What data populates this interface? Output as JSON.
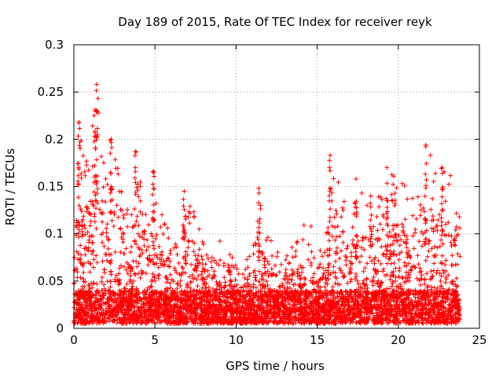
{
  "chart_data": {
    "type": "scatter",
    "title": "Day 189 of 2015, Rate Of TEC Index for receiver reyk",
    "xlabel": "GPS time / hours",
    "ylabel": "ROTI / TECUs",
    "xlim": [
      0,
      25
    ],
    "ylim": [
      0,
      0.3
    ],
    "xticks": [
      0,
      5,
      10,
      15,
      20,
      25
    ],
    "yticks": [
      0,
      0.05,
      0.1,
      0.15,
      0.2,
      0.25,
      0.3
    ],
    "xtick_labels": [
      "0",
      "5",
      "10",
      "15",
      "20",
      "25"
    ],
    "ytick_labels": [
      "0",
      "0.05",
      "0.1",
      "0.15",
      "0.2",
      "0.25",
      "0.3"
    ],
    "grid": true,
    "marker": "+",
    "series_color": "#ff0000",
    "envelope": {
      "description": "approximate upper envelope of ROTI values (hours, TECU/min)",
      "x": [
        0,
        0.3,
        0.6,
        1.0,
        1.5,
        2.0,
        2.5,
        3.0,
        3.5,
        4.0,
        4.5,
        5.0,
        5.5,
        6.0,
        6.5,
        7.0,
        7.5,
        8.0,
        8.5,
        9.0,
        9.5,
        10.0,
        10.5,
        11.0,
        11.5,
        12.0,
        12.5,
        13.0,
        13.5,
        14.0,
        14.5,
        15.0,
        15.5,
        16.0,
        16.5,
        17.0,
        17.5,
        18.0,
        18.5,
        19.0,
        19.5,
        20.0,
        20.5,
        21.0,
        21.5,
        22.0,
        22.5,
        23.0,
        23.5,
        23.8
      ],
      "y": [
        0.15,
        0.21,
        0.19,
        0.2,
        0.25,
        0.16,
        0.2,
        0.14,
        0.12,
        0.19,
        0.14,
        0.14,
        0.12,
        0.1,
        0.09,
        0.14,
        0.12,
        0.09,
        0.08,
        0.1,
        0.09,
        0.07,
        0.07,
        0.09,
        0.14,
        0.1,
        0.11,
        0.08,
        0.09,
        0.12,
        0.12,
        0.08,
        0.09,
        0.18,
        0.16,
        0.11,
        0.15,
        0.14,
        0.14,
        0.14,
        0.17,
        0.16,
        0.15,
        0.16,
        0.15,
        0.19,
        0.16,
        0.17,
        0.16,
        0.12
      ]
    },
    "baseline_range": [
      0.005,
      0.04
    ],
    "spikes": [
      {
        "x": 1.4,
        "y": 0.258
      },
      {
        "x": 1.3,
        "y": 0.231
      },
      {
        "x": 0.3,
        "y": 0.218
      },
      {
        "x": 2.3,
        "y": 0.2
      },
      {
        "x": 3.8,
        "y": 0.187
      },
      {
        "x": 4.9,
        "y": 0.166
      },
      {
        "x": 6.8,
        "y": 0.145
      },
      {
        "x": 11.4,
        "y": 0.148
      },
      {
        "x": 15.8,
        "y": 0.183
      },
      {
        "x": 17.4,
        "y": 0.158
      },
      {
        "x": 18.3,
        "y": 0.14
      },
      {
        "x": 19.3,
        "y": 0.17
      },
      {
        "x": 21.7,
        "y": 0.194
      },
      {
        "x": 22.7,
        "y": 0.17
      }
    ],
    "x_end": 23.8
  }
}
